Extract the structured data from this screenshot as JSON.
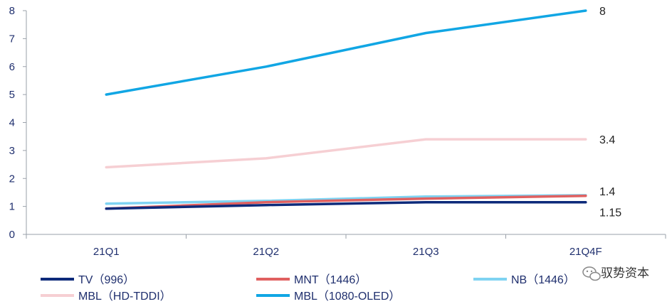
{
  "chart_data": {
    "type": "line",
    "title": "",
    "xlabel": "",
    "ylabel": "",
    "categories": [
      "21Q1",
      "21Q2",
      "21Q3",
      "21Q4F"
    ],
    "ylim": [
      0,
      8
    ],
    "yticks": [
      "0",
      "1",
      "2",
      "3",
      "4",
      "5",
      "6",
      "7",
      "8"
    ],
    "grid": false,
    "legend_position": "bottom",
    "series": [
      {
        "name": "TV（996）",
        "color": "#0d2a7a",
        "values": [
          0.92,
          1.05,
          1.15,
          1.15
        ],
        "end_label": "1.15"
      },
      {
        "name": "MNT（1446）",
        "color": "#e06060",
        "values": [
          0.92,
          1.15,
          1.28,
          1.38
        ],
        "end_label": ""
      },
      {
        "name": "NB（1446）",
        "color": "#7fd3f2",
        "values": [
          1.1,
          1.2,
          1.35,
          1.4
        ],
        "end_label": "1.4"
      },
      {
        "name": "MBL（HD-TDDI）",
        "color": "#f6cfd3",
        "values": [
          2.4,
          2.72,
          3.4,
          3.4
        ],
        "end_label": "3.4"
      },
      {
        "name": "MBL（1080-OLED）",
        "color": "#11a6e4",
        "values": [
          5.0,
          6.0,
          7.2,
          8.0
        ],
        "end_label": "8"
      }
    ]
  },
  "watermark": {
    "text": "驭势资本",
    "icon": "wechat-bubble-icon"
  }
}
